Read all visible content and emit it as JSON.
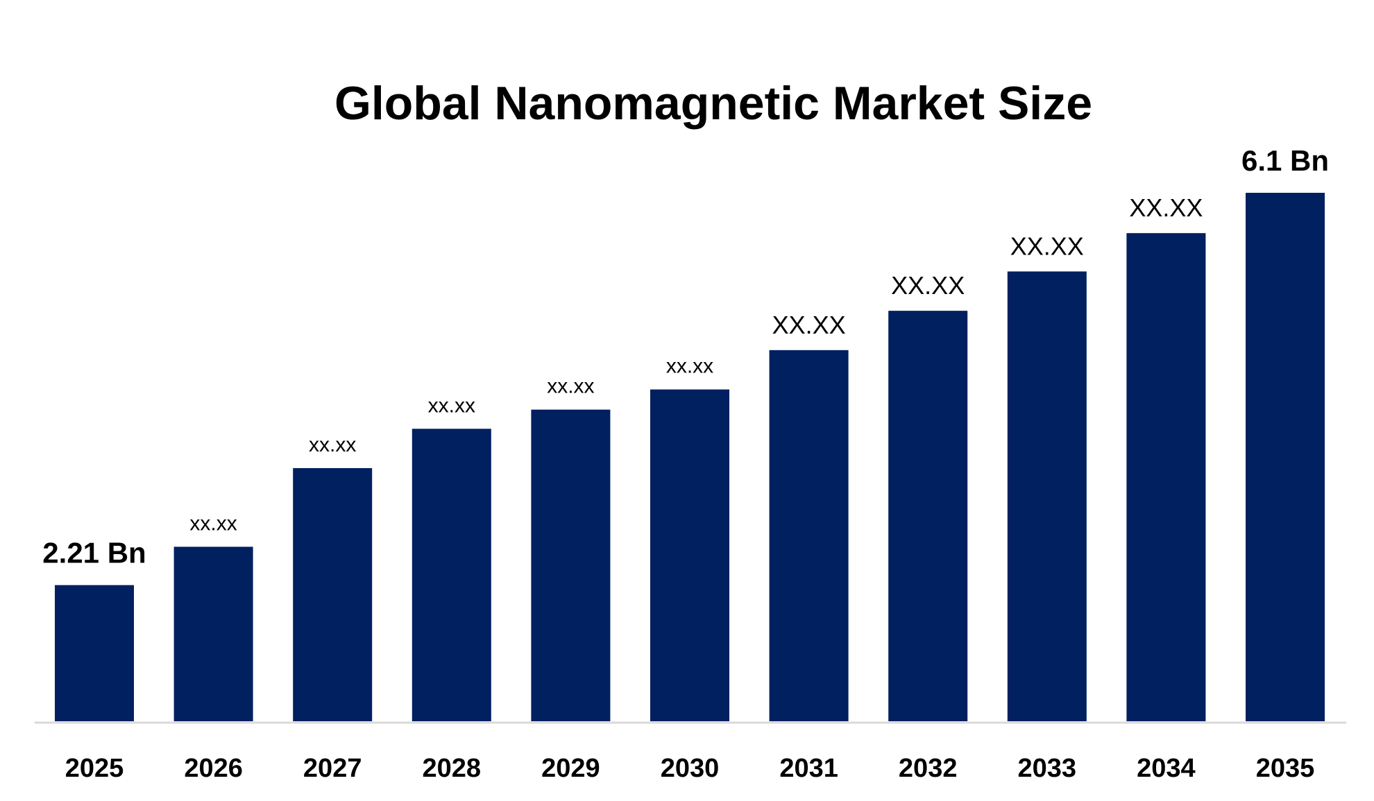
{
  "chart_data": {
    "type": "bar",
    "title": "Global Nanomagnetic Market Size",
    "xlabel": "",
    "ylabel": "",
    "categories": [
      "2025",
      "2026",
      "2027",
      "2028",
      "2029",
      "2030",
      "2031",
      "2032",
      "2033",
      "2034",
      "2035"
    ],
    "values": [
      2.21,
      2.59,
      3.37,
      3.76,
      3.95,
      4.15,
      4.54,
      4.93,
      5.32,
      5.7,
      6.1
    ],
    "data_labels": [
      "2.21 Bn",
      "xx.xx",
      "xx.xx",
      "xx.xx",
      "xx.xx",
      "xx.xx",
      "XX.XX",
      "XX.XX",
      "XX.XX",
      "XX.XX",
      "6.1 Bn"
    ],
    "ylim": [
      0.86,
      6.1
    ],
    "grid": false,
    "legend": "none",
    "colors": {
      "bar": "#002060",
      "axis": "#d9d9d9",
      "text": "#000000"
    }
  }
}
